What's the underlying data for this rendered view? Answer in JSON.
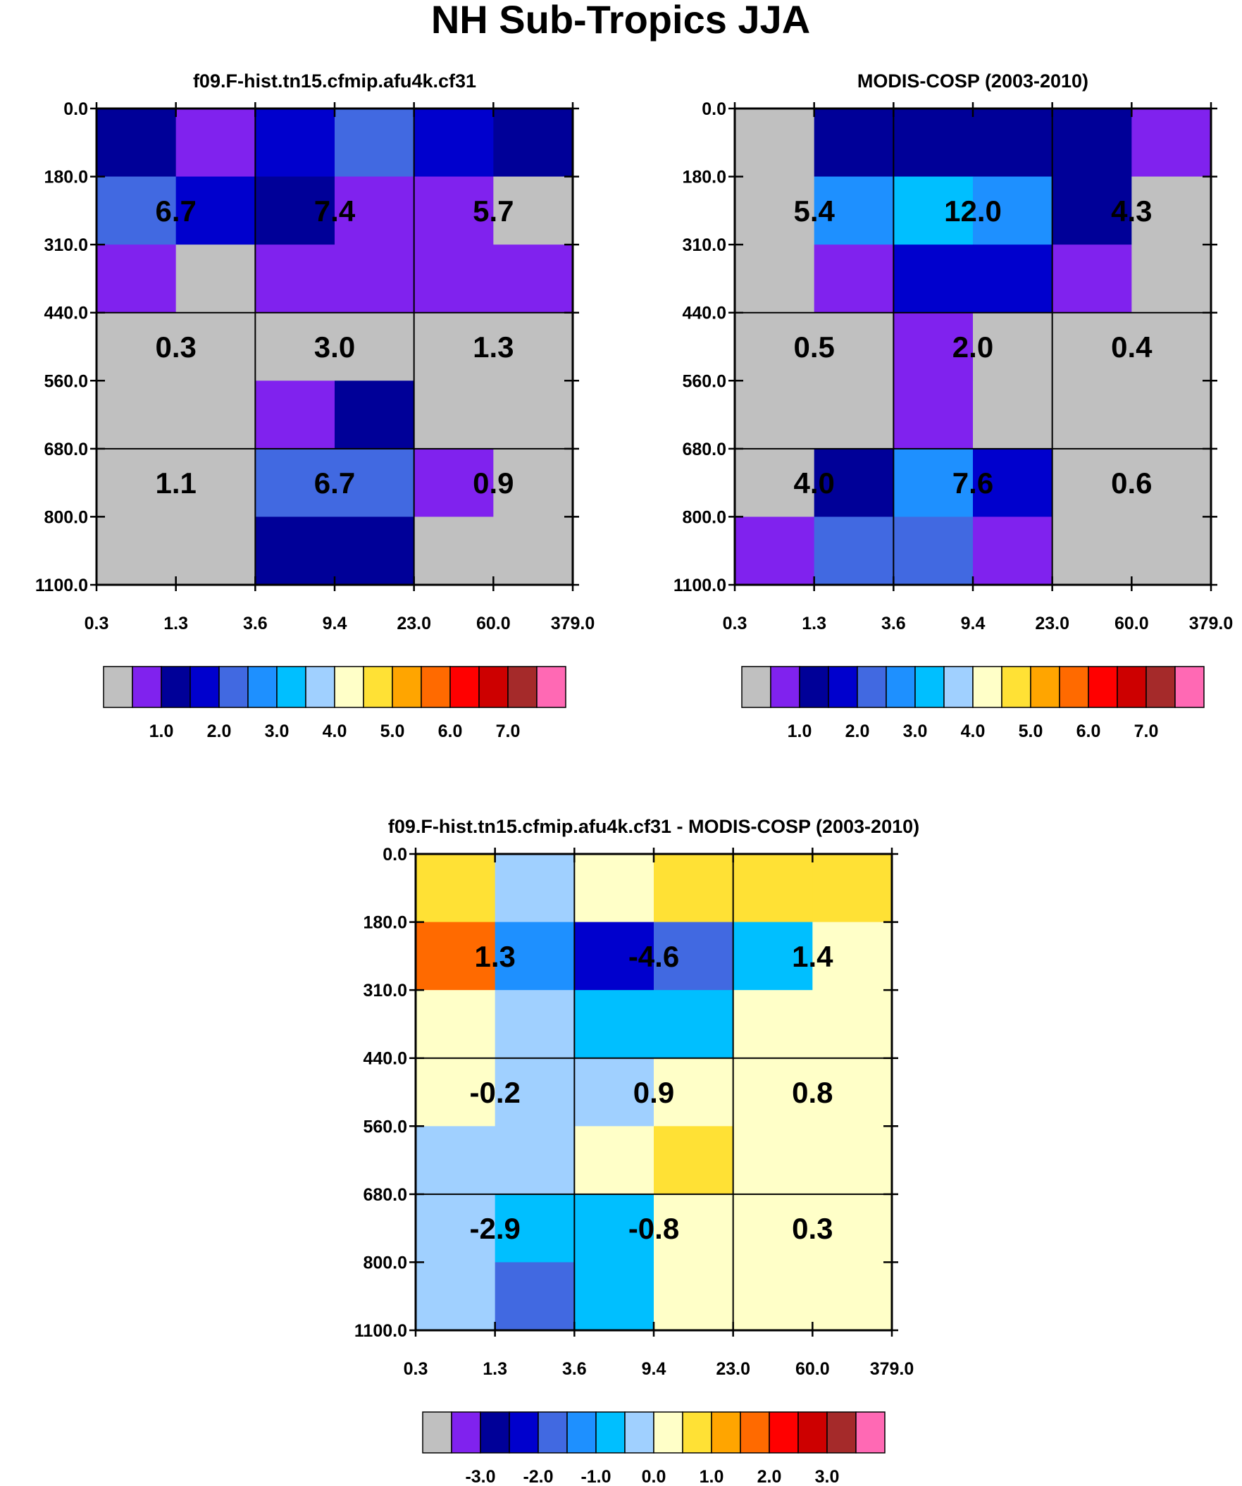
{
  "figure": {
    "title": "NH Sub-Tropics JJA"
  },
  "palette": [
    "#c0c0c0",
    "#8022ee",
    "#000098",
    "#0000cd",
    "#4169e1",
    "#1e90ff",
    "#00bfff",
    "#a0d0ff",
    "#ffffc8",
    "#ffe135",
    "#ffa500",
    "#ff6a00",
    "#ff0000",
    "#cd0000",
    "#a52a2a",
    "#ff69b4"
  ],
  "chart_data": [
    {
      "type": "heatmap",
      "title": "f09.F-hist.tn15.cfmip.afu4k.cf31",
      "x_ticks": [
        "0.3",
        "1.3",
        "3.6",
        "9.4",
        "23.0",
        "60.0",
        "379.0"
      ],
      "y_ticks": [
        "0.0",
        "180.0",
        "310.0",
        "440.0",
        "560.0",
        "680.0",
        "800.0",
        "1100.0"
      ],
      "cell_colors": [
        [
          2,
          1,
          3,
          4,
          3,
          2
        ],
        [
          4,
          3,
          2,
          1,
          1,
          0
        ],
        [
          1,
          0,
          1,
          1,
          1,
          1
        ],
        [
          0,
          0,
          0,
          0,
          0,
          0
        ],
        [
          0,
          0,
          1,
          2,
          0,
          0
        ],
        [
          0,
          0,
          4,
          4,
          1,
          0
        ],
        [
          0,
          0,
          2,
          2,
          0,
          0
        ]
      ],
      "boxes": [
        {
          "col": 0,
          "row": 0,
          "value": "6.7"
        },
        {
          "col": 1,
          "row": 0,
          "value": "7.4"
        },
        {
          "col": 2,
          "row": 0,
          "value": "5.7"
        },
        {
          "col": 0,
          "row": 1,
          "value": "0.3"
        },
        {
          "col": 1,
          "row": 1,
          "value": "3.0"
        },
        {
          "col": 2,
          "row": 1,
          "value": "1.3"
        },
        {
          "col": 0,
          "row": 2,
          "value": "1.1"
        },
        {
          "col": 1,
          "row": 2,
          "value": "6.7"
        },
        {
          "col": 2,
          "row": 2,
          "value": "0.9"
        }
      ],
      "colorbar": {
        "labels": [
          "1.0",
          "2.0",
          "3.0",
          "4.0",
          "5.0",
          "6.0",
          "7.0"
        ]
      }
    },
    {
      "type": "heatmap",
      "title": "MODIS-COSP (2003-2010)",
      "x_ticks": [
        "0.3",
        "1.3",
        "3.6",
        "9.4",
        "23.0",
        "60.0",
        "379.0"
      ],
      "y_ticks": [
        "0.0",
        "180.0",
        "310.0",
        "440.0",
        "560.0",
        "680.0",
        "800.0",
        "1100.0"
      ],
      "cell_colors": [
        [
          0,
          2,
          2,
          2,
          2,
          1
        ],
        [
          0,
          5,
          6,
          5,
          2,
          0
        ],
        [
          0,
          1,
          3,
          3,
          1,
          0
        ],
        [
          0,
          0,
          1,
          0,
          0,
          0
        ],
        [
          0,
          0,
          1,
          0,
          0,
          0
        ],
        [
          0,
          2,
          5,
          3,
          0,
          0
        ],
        [
          1,
          4,
          4,
          1,
          0,
          0
        ]
      ],
      "boxes": [
        {
          "col": 0,
          "row": 0,
          "value": "5.4"
        },
        {
          "col": 1,
          "row": 0,
          "value": "12.0"
        },
        {
          "col": 2,
          "row": 0,
          "value": "4.3"
        },
        {
          "col": 0,
          "row": 1,
          "value": "0.5"
        },
        {
          "col": 1,
          "row": 1,
          "value": "2.0"
        },
        {
          "col": 2,
          "row": 1,
          "value": "0.4"
        },
        {
          "col": 0,
          "row": 2,
          "value": "4.0"
        },
        {
          "col": 1,
          "row": 2,
          "value": "7.6"
        },
        {
          "col": 2,
          "row": 2,
          "value": "0.6"
        }
      ],
      "colorbar": {
        "labels": [
          "1.0",
          "2.0",
          "3.0",
          "4.0",
          "5.0",
          "6.0",
          "7.0"
        ]
      }
    },
    {
      "type": "heatmap",
      "title": "f09.F-hist.tn15.cfmip.afu4k.cf31 - MODIS-COSP (2003-2010)",
      "x_ticks": [
        "0.3",
        "1.3",
        "3.6",
        "9.4",
        "23.0",
        "60.0",
        "379.0"
      ],
      "y_ticks": [
        "0.0",
        "180.0",
        "310.0",
        "440.0",
        "560.0",
        "680.0",
        "800.0",
        "1100.0"
      ],
      "cell_colors": [
        [
          9,
          7,
          8,
          9,
          9,
          9
        ],
        [
          11,
          5,
          3,
          4,
          6,
          8
        ],
        [
          8,
          7,
          6,
          6,
          8,
          8
        ],
        [
          8,
          7,
          7,
          8,
          8,
          8
        ],
        [
          7,
          7,
          8,
          9,
          8,
          8
        ],
        [
          7,
          6,
          6,
          8,
          8,
          8
        ],
        [
          7,
          4,
          6,
          8,
          8,
          8
        ]
      ],
      "boxes": [
        {
          "col": 0,
          "row": 0,
          "value": "1.3"
        },
        {
          "col": 1,
          "row": 0,
          "value": "-4.6"
        },
        {
          "col": 2,
          "row": 0,
          "value": "1.4"
        },
        {
          "col": 0,
          "row": 1,
          "value": "-0.2"
        },
        {
          "col": 1,
          "row": 1,
          "value": "0.9"
        },
        {
          "col": 2,
          "row": 1,
          "value": "0.8"
        },
        {
          "col": 0,
          "row": 2,
          "value": "-2.9"
        },
        {
          "col": 1,
          "row": 2,
          "value": "-0.8"
        },
        {
          "col": 2,
          "row": 2,
          "value": "0.3"
        }
      ],
      "colorbar": {
        "labels": [
          "-3.0",
          "-2.0",
          "-1.0",
          "0.0",
          "1.0",
          "2.0",
          "3.0"
        ]
      }
    }
  ]
}
